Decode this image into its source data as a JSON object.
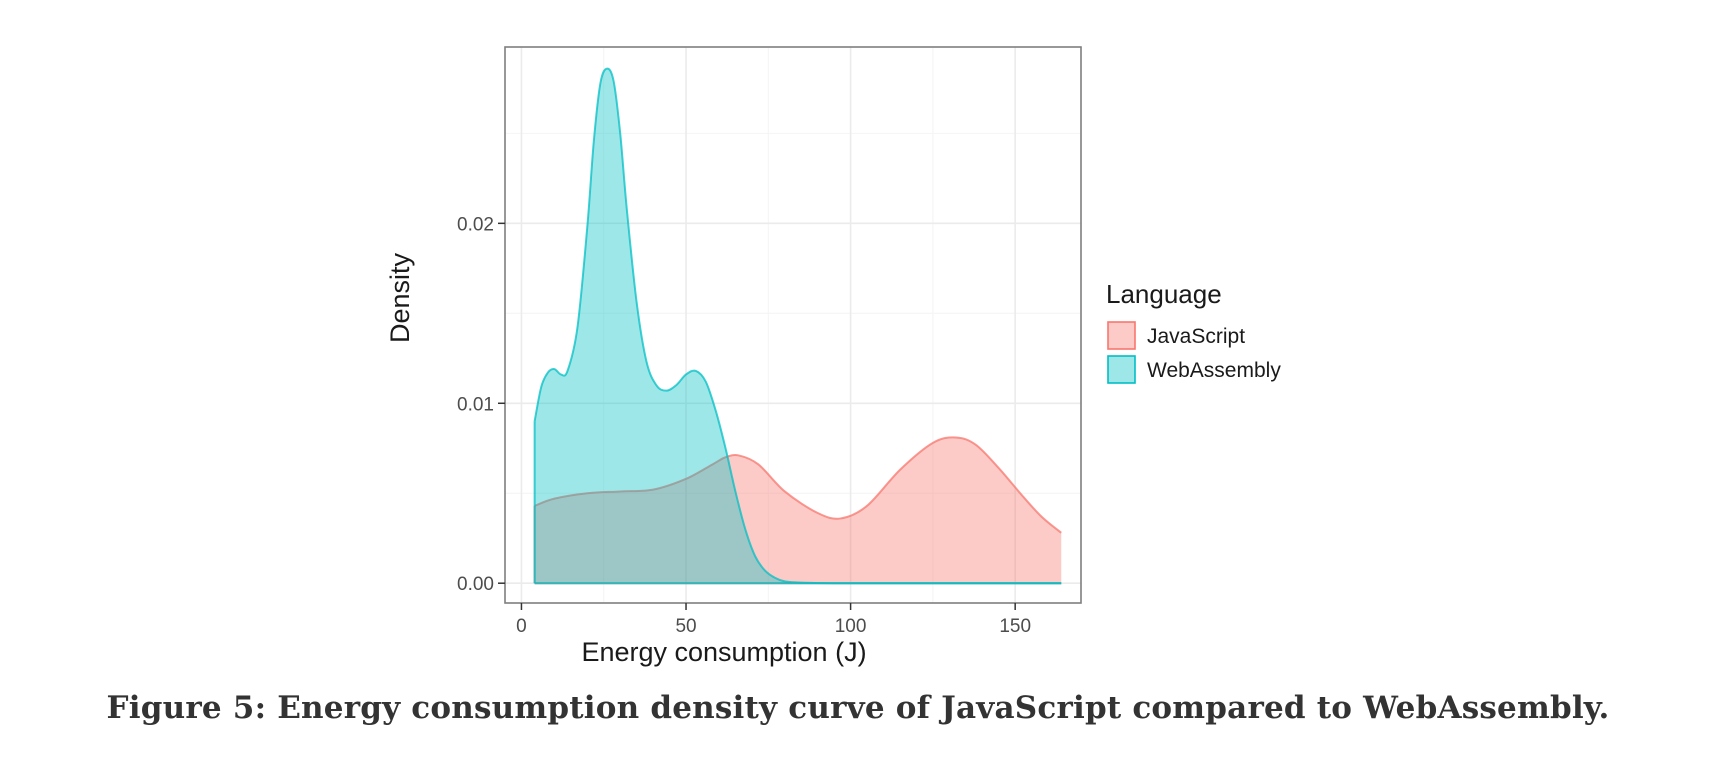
{
  "chart_data": {
    "type": "area",
    "subtype": "density",
    "xlabel": "Energy consumption (J)",
    "ylabel": "Density",
    "xlim": [
      -5,
      170
    ],
    "ylim": [
      -0.0011,
      0.0298
    ],
    "x_ticks": [
      0,
      50,
      100,
      150
    ],
    "y_ticks": [
      0.0,
      0.01,
      0.02
    ],
    "x_tick_labels": [
      "0",
      "50",
      "100",
      "150"
    ],
    "y_tick_labels": [
      "0.00",
      "0.01",
      "0.02"
    ],
    "grid": true,
    "legend": {
      "title": "Language",
      "position": "right"
    },
    "series": [
      {
        "name": "JavaScript",
        "fill": "#F8766D",
        "line": "#F8766D",
        "x": [
          4,
          10,
          20,
          30,
          40,
          50,
          58,
          62,
          66,
          72,
          80,
          90,
          97,
          105,
          115,
          125,
          132,
          138,
          145,
          152,
          158,
          164
        ],
        "y": [
          0.0043,
          0.0047,
          0.005,
          0.0051,
          0.0052,
          0.0058,
          0.0066,
          0.007,
          0.0071,
          0.0066,
          0.0051,
          0.0039,
          0.0036,
          0.0043,
          0.0063,
          0.0078,
          0.0081,
          0.0077,
          0.0064,
          0.0049,
          0.0037,
          0.0028
        ]
      },
      {
        "name": "WebAssembly",
        "fill": "#00BFC4",
        "line": "#00BFC4",
        "x": [
          4,
          6,
          8,
          10,
          12,
          14,
          17,
          20,
          22,
          24,
          26,
          28,
          30,
          32,
          35,
          38,
          41,
          44,
          47,
          50,
          53,
          56,
          59,
          62,
          65,
          68,
          71,
          74,
          77,
          80,
          85,
          95,
          110,
          130,
          150,
          164
        ],
        "y": [
          0.009,
          0.0109,
          0.0117,
          0.0119,
          0.0116,
          0.0118,
          0.0142,
          0.0198,
          0.0246,
          0.0278,
          0.0286,
          0.0279,
          0.025,
          0.0208,
          0.0156,
          0.0123,
          0.011,
          0.0107,
          0.011,
          0.0116,
          0.0118,
          0.0112,
          0.0096,
          0.0075,
          0.0051,
          0.003,
          0.0015,
          0.0007,
          0.0003,
          0.0001,
          3e-05,
          0.0,
          0.0,
          0.0,
          0.0,
          0.0
        ]
      }
    ]
  },
  "caption": "Figure 5: Energy consumption density curve of JavaScript compared to WebAssembly."
}
